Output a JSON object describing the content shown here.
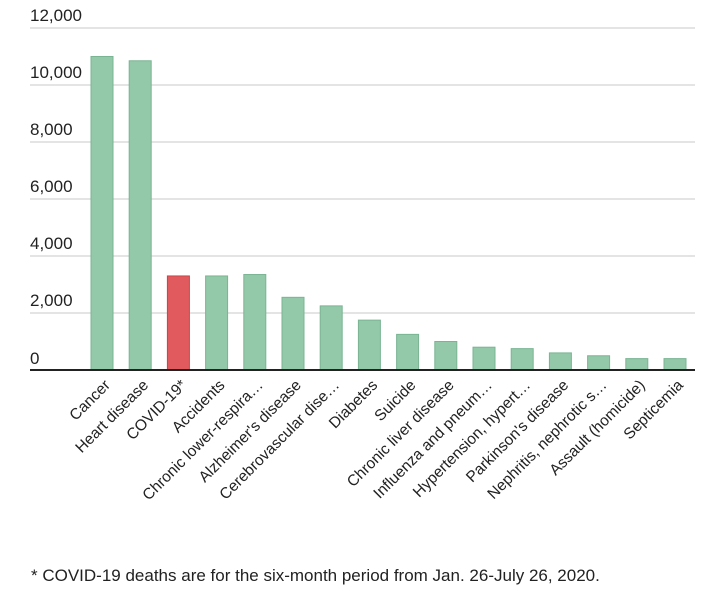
{
  "chart_data": {
    "type": "bar",
    "title": "",
    "xlabel": "",
    "ylabel": "",
    "ylim": [
      0,
      12000
    ],
    "yticks": [
      0,
      2000,
      4000,
      6000,
      8000,
      10000,
      12000
    ],
    "ytick_labels": [
      "0",
      "2,000",
      "4,000",
      "6,000",
      "8,000",
      "10,000",
      "12,000"
    ],
    "grid": true,
    "categories": [
      "Cancer",
      "Heart disease",
      "COVID-19*",
      "Accidents",
      "Chronic lower-respira…",
      "Alzheimer's disease",
      "Cerebrovascular dise…",
      "Diabetes",
      "Suicide",
      "Chronic liver disease",
      "Influenza and pneum…",
      "Hypertension, hypert…",
      "Parkinson's disease",
      "Nephritis, nephrotic s…",
      "Assault (homicide)",
      "Septicemia"
    ],
    "values": [
      11000,
      10850,
      3300,
      3300,
      3350,
      2550,
      2250,
      1750,
      1250,
      1000,
      800,
      750,
      600,
      500,
      400,
      400
    ],
    "highlight_index": 2,
    "bar_color": "#93c9a8",
    "bar_border": "#7ab593",
    "highlight_color": "#e05a5e",
    "highlight_border": "#c94448"
  },
  "footnote": "* COVID-19 deaths are for the six-month period from Jan. 26-July 26, 2020."
}
